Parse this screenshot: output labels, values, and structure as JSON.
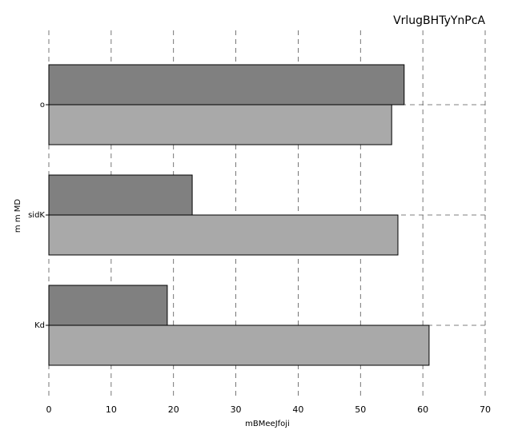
{
  "chart_data": {
    "type": "bar",
    "orientation": "horizontal",
    "title": "VrlugBHTyYnPcA",
    "xlabel": "mBMeeJfoji",
    "ylabel": "m m MD",
    "categories": [
      "o",
      "sidK",
      "Kd"
    ],
    "series": [
      {
        "values": [
          57,
          23,
          19
        ],
        "color": "#808080"
      },
      {
        "values": [
          55,
          56,
          61
        ],
        "color": "#a9a9a9"
      }
    ],
    "xlim": [
      0,
      70
    ],
    "xticks": [
      0,
      10,
      20,
      30,
      40,
      50,
      60,
      70
    ],
    "grid": true,
    "legend": "none"
  }
}
